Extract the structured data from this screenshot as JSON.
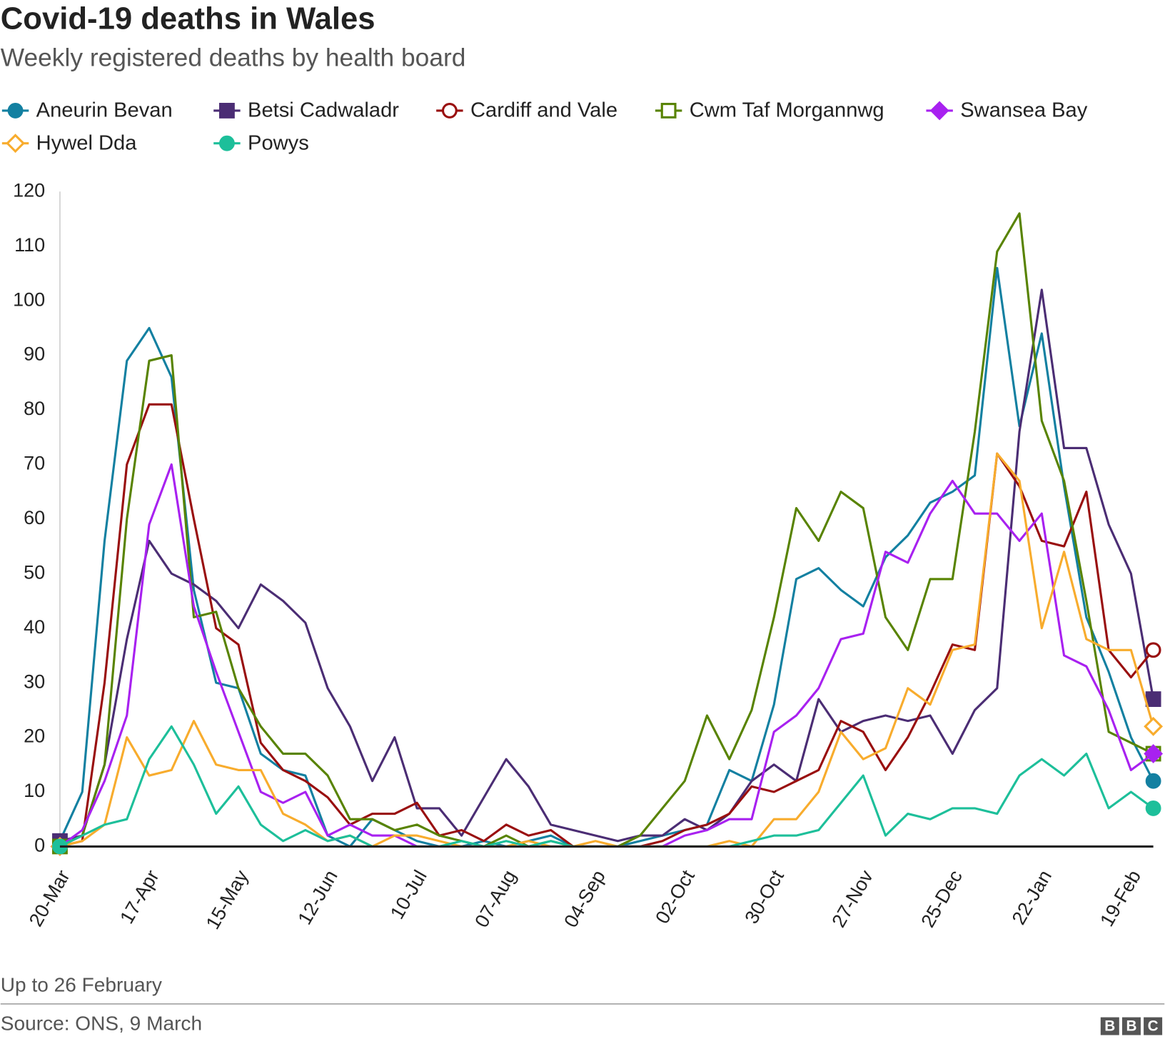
{
  "chart_data": {
    "type": "line",
    "title": "Covid-19 deaths in Wales",
    "subtitle": "Weekly registered deaths by health board",
    "footnote": "Up to 26 February",
    "source": "Source: ONS, 9 March",
    "logo": [
      "B",
      "B",
      "C"
    ],
    "categories": [
      "20-Mar",
      null,
      null,
      null,
      "17-Apr",
      null,
      null,
      null,
      "15-May",
      null,
      null,
      null,
      "12-Jun",
      null,
      null,
      null,
      "10-Jul",
      null,
      null,
      null,
      "07-Aug",
      null,
      null,
      null,
      "04-Sep",
      null,
      null,
      null,
      "02-Oct",
      null,
      null,
      null,
      "30-Oct",
      null,
      null,
      null,
      "27-Nov",
      null,
      null,
      null,
      "25-Dec",
      null,
      null,
      null,
      "22-Jan",
      null,
      null,
      null,
      "19-Feb",
      null
    ],
    "ylim": [
      0,
      120
    ],
    "yticks": [
      0,
      10,
      20,
      30,
      40,
      50,
      60,
      70,
      80,
      90,
      100,
      110,
      120
    ],
    "grid": false,
    "series": [
      {
        "name": "Aneurin Bevan",
        "color": "#1380a1",
        "marker": "circle",
        "filled": true,
        "values": [
          1,
          10,
          56,
          89,
          95,
          86,
          47,
          30,
          29,
          17,
          14,
          13,
          2,
          0,
          5,
          3,
          1,
          0,
          0,
          1,
          0,
          1,
          2,
          0,
          0,
          0,
          1,
          2,
          3,
          4,
          14,
          12,
          26,
          49,
          51,
          47,
          44,
          53,
          57,
          63,
          65,
          68,
          106,
          77,
          94,
          66,
          42,
          32,
          20,
          12
        ]
      },
      {
        "name": "Betsi Cadwaladr",
        "color": "#4b2d74",
        "marker": "square",
        "filled": true,
        "values": [
          1,
          2,
          15,
          38,
          56,
          50,
          48,
          45,
          40,
          48,
          45,
          41,
          29,
          22,
          12,
          20,
          7,
          7,
          2,
          9,
          16,
          11,
          4,
          3,
          2,
          1,
          2,
          2,
          5,
          3,
          6,
          12,
          15,
          12,
          27,
          21,
          23,
          24,
          23,
          24,
          17,
          25,
          29,
          76,
          102,
          73,
          73,
          59,
          50,
          27
        ]
      },
      {
        "name": "Cardiff and Vale",
        "color": "#990f0f",
        "marker": "circle",
        "filled": false,
        "values": [
          0,
          1,
          30,
          70,
          81,
          81,
          60,
          40,
          37,
          19,
          14,
          12,
          9,
          4,
          6,
          6,
          8,
          2,
          3,
          1,
          4,
          2,
          3,
          0,
          0,
          0,
          0,
          1,
          3,
          4,
          6,
          11,
          10,
          12,
          14,
          23,
          21,
          14,
          20,
          28,
          37,
          36,
          72,
          66,
          56,
          55,
          65,
          36,
          31,
          36
        ]
      },
      {
        "name": "Cwm Taf Morgannwg",
        "color": "#588300",
        "marker": "square",
        "filled": false,
        "values": [
          0,
          2,
          15,
          60,
          89,
          90,
          42,
          43,
          29,
          22,
          17,
          17,
          13,
          5,
          5,
          3,
          4,
          2,
          1,
          0,
          2,
          0,
          1,
          0,
          0,
          0,
          2,
          7,
          12,
          24,
          16,
          25,
          42,
          62,
          56,
          65,
          62,
          42,
          36,
          49,
          49,
          76,
          109,
          116,
          78,
          67,
          45,
          21,
          19,
          17
        ]
      },
      {
        "name": "Swansea Bay",
        "color": "#a821f0",
        "marker": "diamond",
        "filled": true,
        "values": [
          0,
          3,
          12,
          24,
          59,
          70,
          44,
          32,
          21,
          10,
          8,
          10,
          2,
          4,
          2,
          2,
          0,
          0,
          0,
          0,
          0,
          0,
          0,
          0,
          0,
          0,
          0,
          0,
          2,
          3,
          5,
          5,
          21,
          24,
          29,
          38,
          39,
          54,
          52,
          61,
          67,
          61,
          61,
          56,
          61,
          35,
          33,
          25,
          14,
          17
        ]
      },
      {
        "name": "Hywel Dda",
        "color": "#f8ac2d",
        "marker": "diamond",
        "filled": false,
        "values": [
          0,
          1,
          4,
          20,
          13,
          14,
          23,
          15,
          14,
          14,
          6,
          4,
          1,
          2,
          0,
          2,
          2,
          1,
          0,
          0,
          0,
          1,
          0,
          0,
          1,
          0,
          0,
          0,
          0,
          0,
          1,
          0,
          5,
          5,
          10,
          21,
          16,
          18,
          29,
          26,
          36,
          37,
          72,
          67,
          40,
          54,
          38,
          36,
          36,
          22
        ]
      },
      {
        "name": "Powys",
        "color": "#1dbf9a",
        "marker": "circle",
        "filled": true,
        "values": [
          0,
          2,
          4,
          5,
          16,
          22,
          15,
          6,
          11,
          4,
          1,
          3,
          1,
          2,
          0,
          0,
          0,
          0,
          1,
          0,
          1,
          0,
          1,
          0,
          0,
          0,
          0,
          0,
          0,
          0,
          0,
          1,
          2,
          2,
          3,
          8,
          13,
          2,
          6,
          5,
          7,
          7,
          6,
          13,
          16,
          13,
          17,
          7,
          10,
          7
        ]
      }
    ]
  }
}
